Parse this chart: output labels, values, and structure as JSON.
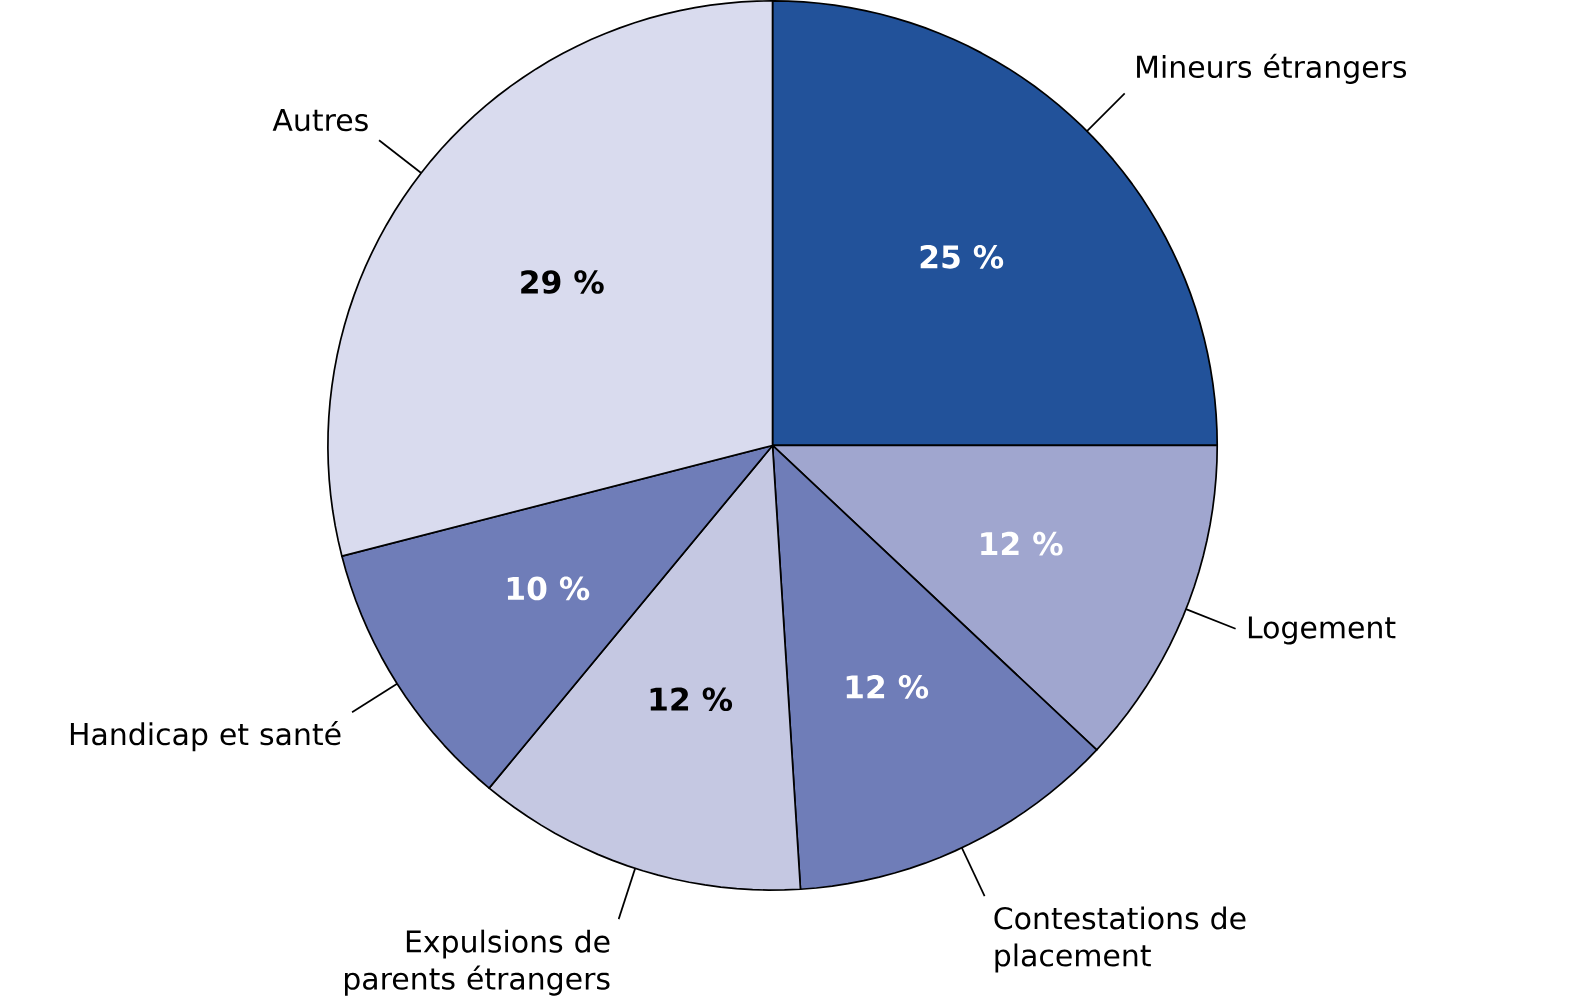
{
  "chart_data": {
    "type": "pie",
    "categories": [
      "Mineurs étrangers",
      "Logement",
      "Contestations de placement",
      "Expulsions de parents étrangers",
      "Handicap et santé",
      "Autres"
    ],
    "values": [
      25,
      12,
      12,
      12,
      10,
      29
    ],
    "colors": [
      "#22529a",
      "#a0a6cf",
      "#6f7db8",
      "#c5c8e2",
      "#6f7db8",
      "#d9dbee"
    ],
    "value_labels": [
      "25 %",
      "12 %",
      "12 %",
      "12 %",
      "10 %",
      "29 %"
    ]
  }
}
